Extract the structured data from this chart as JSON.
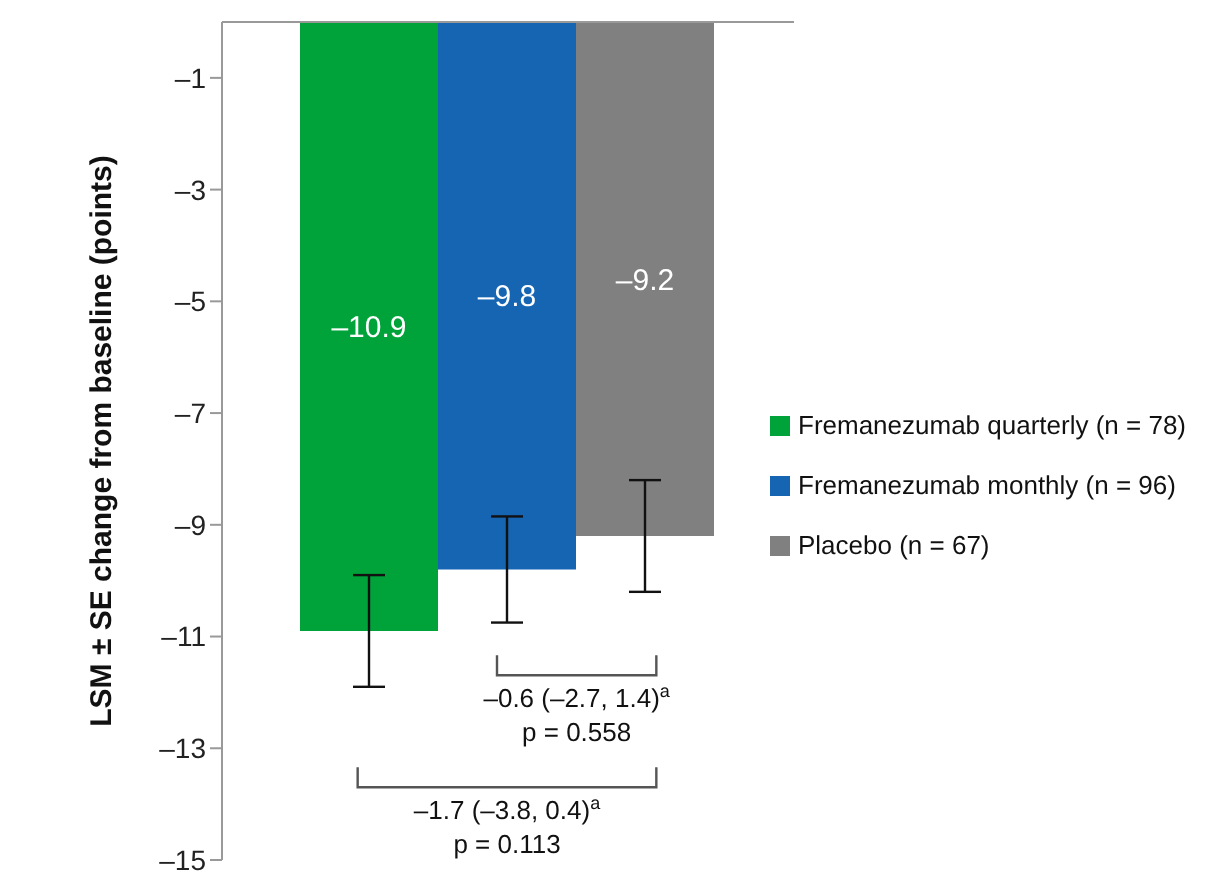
{
  "chart_data": {
    "type": "bar",
    "ylabel": "LSM ± SE change from baseline (points)",
    "categories": [
      null
    ],
    "series": [
      {
        "name": "Fremanezumab quarterly (n = 78)",
        "color": "#00a33a",
        "values": [
          -10.9
        ],
        "errors": [
          1.0
        ],
        "value_labels": [
          "–10.9"
        ]
      },
      {
        "name": "Fremanezumab monthly (n = 96)",
        "color": "#1565b3",
        "values": [
          -9.8
        ],
        "errors": [
          0.95
        ],
        "value_labels": [
          "–9.8"
        ]
      },
      {
        "name": "Placebo (n = 67)",
        "color": "#808080",
        "values": [
          -9.2
        ],
        "errors": [
          1.0
        ],
        "value_labels": [
          "–9.2"
        ]
      }
    ],
    "ylim": [
      -15,
      0
    ],
    "yticks": [
      {
        "value": -1,
        "label": "–1"
      },
      {
        "value": -3,
        "label": "–3"
      },
      {
        "value": -5,
        "label": "–5"
      },
      {
        "value": -7,
        "label": "–7"
      },
      {
        "value": -9,
        "label": "–9"
      },
      {
        "value": -11,
        "label": "–11"
      },
      {
        "value": -13,
        "label": "–13"
      },
      {
        "value": -15,
        "label": "–15"
      }
    ],
    "annotations": [
      "–0.6 (–2.7, 1.4)$^{a}$",
      "p = 0.558",
      "–1.7 (–3.8, 0.4)$^{a}$",
      "p = 0.113"
    ],
    "tick_labels": "y",
    "grid": false,
    "legend": "right"
  }
}
